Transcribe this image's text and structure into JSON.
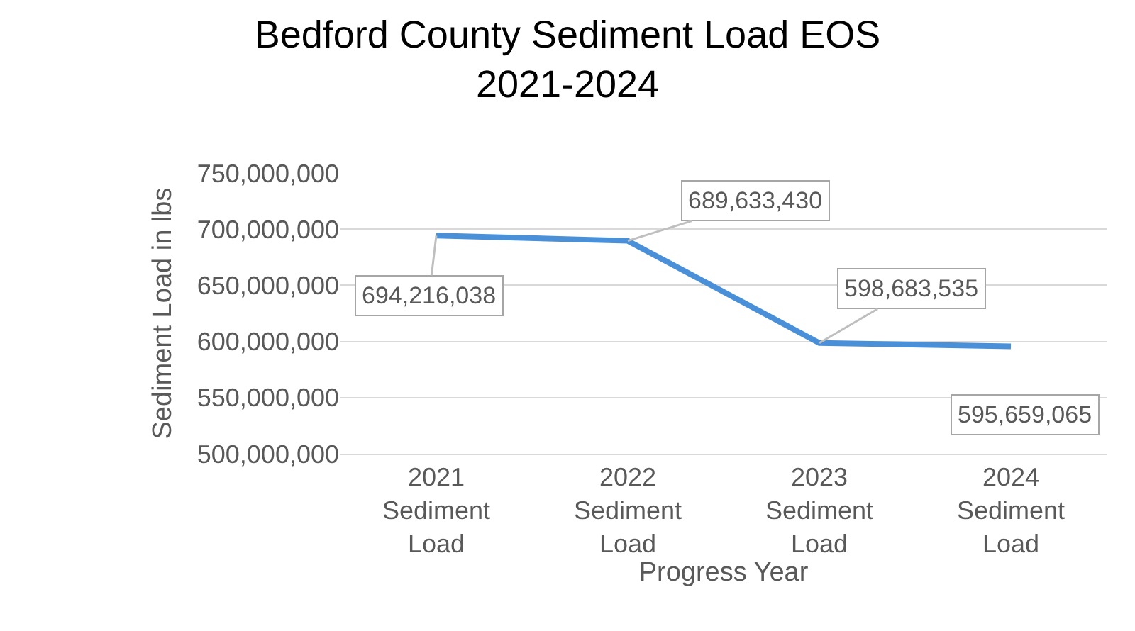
{
  "chart_data": {
    "type": "line",
    "title": "Bedford County Sediment Load EOS\n2021-2024",
    "xlabel": "Progress Year",
    "ylabel": "Sediment Load in lbs",
    "categories": [
      "2021 Sediment Load",
      "2022 Sediment Load",
      "2023 Sediment Load",
      "2024 Sediment Load"
    ],
    "series": [
      {
        "color": "#4a90d9",
        "values": [
          694216038,
          689633430,
          598683535,
          595659065
        ],
        "value_labels": [
          "694,216,038",
          "689,633,430",
          "598,683,535",
          "595,659,065"
        ]
      }
    ],
    "ylim": [
      500000000,
      750000000
    ],
    "yticks": [
      {
        "value": 500000000,
        "label": "500,000,000"
      },
      {
        "value": 550000000,
        "label": "550,000,000"
      },
      {
        "value": 600000000,
        "label": "600,000,000"
      },
      {
        "value": 650000000,
        "label": "650,000,000"
      },
      {
        "value": 700000000,
        "label": "700,000,000"
      },
      {
        "value": 750000000,
        "label": "750,000,000"
      }
    ],
    "grid": "y",
    "marker": "none",
    "line_style": "solid"
  }
}
